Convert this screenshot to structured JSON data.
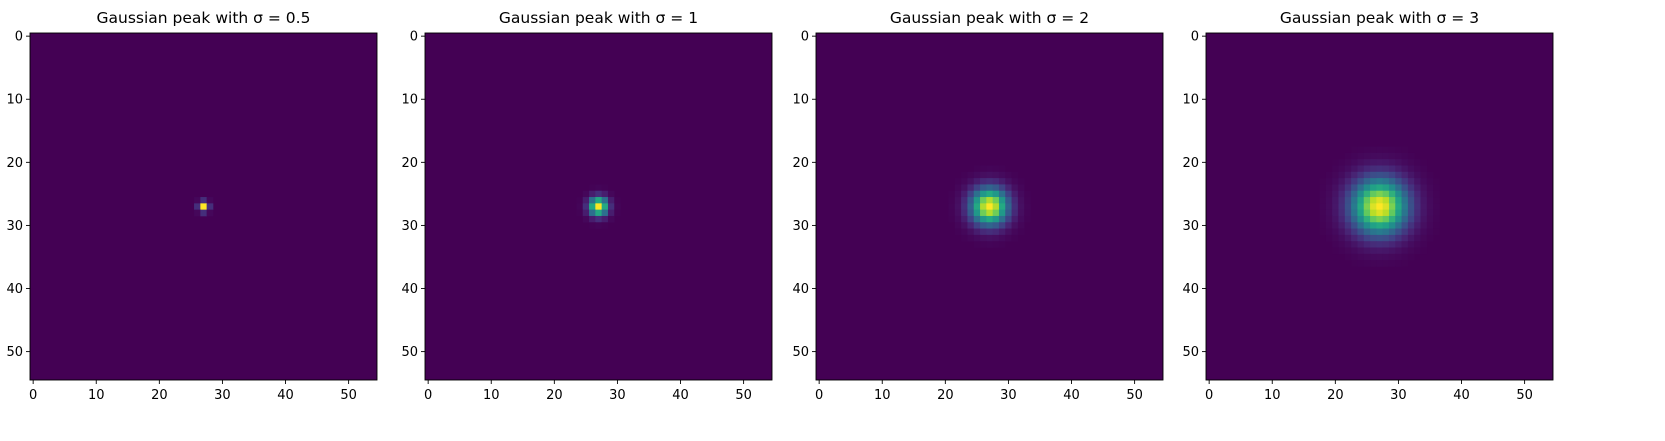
{
  "chart_data": [
    {
      "type": "heatmap",
      "title": "Gaussian peak with σ = 0.5",
      "sigma": 0.5,
      "grid_size": 55,
      "center": [
        27,
        27
      ],
      "colormap": "viridis",
      "xticks": [
        0,
        10,
        20,
        30,
        40,
        50
      ],
      "yticks": [
        0,
        10,
        20,
        30,
        40,
        50
      ],
      "xlim": [
        -0.5,
        54.5
      ],
      "ylim": [
        54.5,
        -0.5
      ]
    },
    {
      "type": "heatmap",
      "title": "Gaussian peak with σ = 1",
      "sigma": 1,
      "grid_size": 55,
      "center": [
        27,
        27
      ],
      "colormap": "viridis",
      "xticks": [
        0,
        10,
        20,
        30,
        40,
        50
      ],
      "yticks": [
        0,
        10,
        20,
        30,
        40,
        50
      ],
      "xlim": [
        -0.5,
        54.5
      ],
      "ylim": [
        54.5,
        -0.5
      ]
    },
    {
      "type": "heatmap",
      "title": "Gaussian peak with σ = 2",
      "sigma": 2,
      "grid_size": 55,
      "center": [
        27,
        27
      ],
      "colormap": "viridis",
      "xticks": [
        0,
        10,
        20,
        30,
        40,
        50
      ],
      "yticks": [
        0,
        10,
        20,
        30,
        40,
        50
      ],
      "xlim": [
        -0.5,
        54.5
      ],
      "ylim": [
        54.5,
        -0.5
      ]
    },
    {
      "type": "heatmap",
      "title": "Gaussian peak with σ = 3",
      "sigma": 3,
      "grid_size": 55,
      "center": [
        27,
        27
      ],
      "colormap": "viridis",
      "xticks": [
        0,
        10,
        20,
        30,
        40,
        50
      ],
      "yticks": [
        0,
        10,
        20,
        30,
        40,
        50
      ],
      "xlim": [
        -0.5,
        54.5
      ],
      "ylim": [
        54.5,
        -0.5
      ]
    }
  ]
}
